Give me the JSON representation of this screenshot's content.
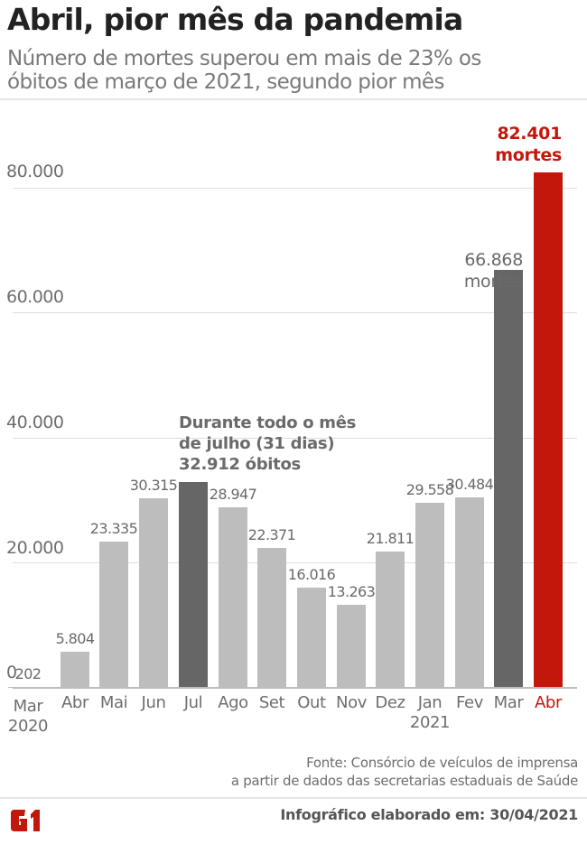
{
  "header": {
    "title": "Abril, pior mês da pandemia",
    "subtitle_line1": "Número de mortes superou em mais de 23% os",
    "subtitle_line2": "óbitos de março de 2021, segundo pior mês"
  },
  "chart_data": {
    "type": "bar",
    "title": "Abril, pior mês da pandemia",
    "subtitle": "Número de mortes superou em mais de 23% os óbitos de março de 2021, segundo pior mês",
    "xlabel": "",
    "ylabel": "",
    "ylim": [
      0,
      82401
    ],
    "grid": true,
    "categories": [
      "Mar 2020",
      "Abr",
      "Mai",
      "Jun",
      "Jul",
      "Ago",
      "Set",
      "Out",
      "Nov",
      "Dez",
      "Jan 2021",
      "Fev",
      "Mar",
      "Abr"
    ],
    "values": [
      202,
      5804,
      23335,
      30315,
      32912,
      28947,
      22371,
      16016,
      13263,
      21811,
      29558,
      30484,
      66868,
      82401
    ],
    "yticks": [
      "0",
      "20.000",
      "40.000",
      "60.000",
      "80.000"
    ],
    "annotations": [
      {
        "target": "Jul",
        "text": "Durante todo o mês de julho (31 dias) 32.912 óbitos"
      },
      {
        "target": "Mar 2021",
        "text": "66.868 mortes"
      },
      {
        "target": "Abr 2021",
        "text": "82.401 mortes"
      }
    ]
  },
  "yaxis": {
    "ticks": [
      {
        "label": "80.000",
        "value": 80000
      },
      {
        "label": "60.000",
        "value": 60000
      },
      {
        "label": "40.000",
        "value": 40000
      },
      {
        "label": "20.000",
        "value": 20000
      },
      {
        "label": "0",
        "value": 0
      }
    ]
  },
  "bars": [
    {
      "month": "Mar",
      "year": "2020",
      "value_label": "202"
    },
    {
      "month": "Abr",
      "year": "",
      "value_label": "5.804"
    },
    {
      "month": "Mai",
      "year": "",
      "value_label": "23.335"
    },
    {
      "month": "Jun",
      "year": "",
      "value_label": "30.315"
    },
    {
      "month": "Jul",
      "year": "",
      "value_label": ""
    },
    {
      "month": "Ago",
      "year": "",
      "value_label": "28.947"
    },
    {
      "month": "Set",
      "year": "",
      "value_label": "22.371"
    },
    {
      "month": "Out",
      "year": "",
      "value_label": "16.016"
    },
    {
      "month": "Nov",
      "year": "",
      "value_label": "13.263"
    },
    {
      "month": "Dez",
      "year": "",
      "value_label": "21.811"
    },
    {
      "month": "Jan",
      "year": "2021",
      "value_label": "29.558"
    },
    {
      "month": "Fev",
      "year": "",
      "value_label": "30.484"
    },
    {
      "month": "Mar",
      "year": "",
      "value_label": ""
    },
    {
      "month": "Abr",
      "year": "",
      "value_label": ""
    }
  ],
  "annotations": {
    "jul_line1": "Durante todo o mês",
    "jul_line2": "de julho (31 dias)",
    "jul_line3": "32.912 óbitos",
    "mar_line1": "66.868",
    "mar_line2": "mortes",
    "abr_line1": "82.401",
    "abr_line2": "mortes"
  },
  "colors": {
    "bar_default": "#bdbdbd",
    "bar_highlight": "#666666",
    "bar_accent": "#c4170c",
    "title": "#222222",
    "subtitle": "#7a7a7a"
  },
  "footer": {
    "source_line1": "Fonte: Consórcio de veículos de imprensa",
    "source_line2": "a partir de dados das secretarias estaduais de Saúde",
    "credit": "Infográfico elaborado em: 30/04/2021",
    "logo": "G1"
  }
}
